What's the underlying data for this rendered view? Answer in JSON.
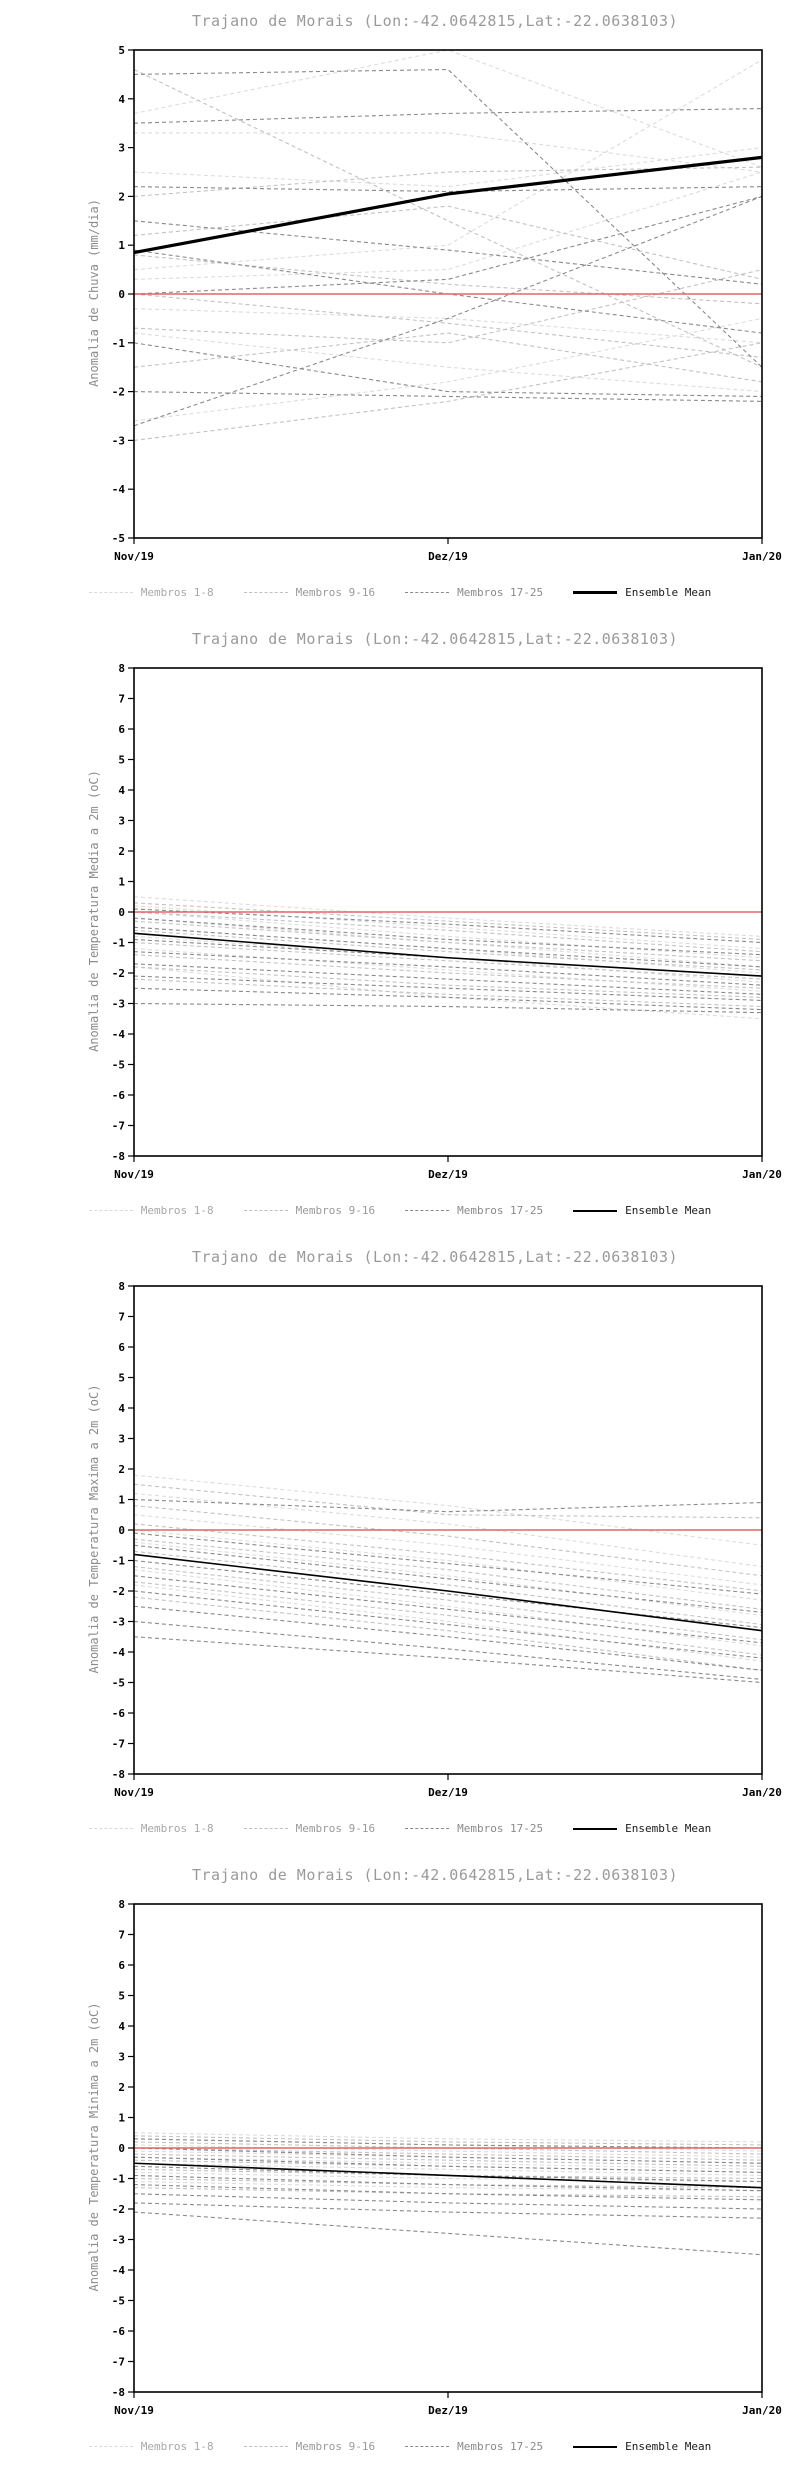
{
  "charts_meta": {
    "legend": [
      {
        "label": "Membros 1-8",
        "style": "dashed",
        "color": "#d9d9d9",
        "label_color": "#a8a8a8"
      },
      {
        "label": "Membros 9-16",
        "style": "dashed",
        "color": "#bfbfbf",
        "label_color": "#9a9a9a"
      },
      {
        "label": "Membros 17-25",
        "style": "dashed",
        "color": "#8a8a8a",
        "label_color": "#8a8a8a"
      },
      {
        "label": "Ensemble Mean",
        "style": "solid",
        "color": "#000000",
        "label_color": "#1a1a1a"
      }
    ],
    "group_colors": {
      "1": "#dcdcdc",
      "2": "#c2c2c2",
      "3": "#8a8a8a"
    },
    "colors": {
      "zero_line": "#e06666",
      "mean_line": "#000000",
      "frame": "#000000",
      "title": "#9a9a9a"
    }
  },
  "chart_data": [
    {
      "type": "line",
      "title": "Trajano de Morais (Lon:-42.0642815,Lat:-22.0638103)",
      "ylabel": "Anomalia de Chuva (mm/dia)",
      "xlabel": "",
      "x": [
        "Nov/19",
        "Dez/19",
        "Jan/20"
      ],
      "ylim": [
        -5,
        5
      ],
      "ytick_step": 1,
      "zero_line": 0,
      "mean": [
        0.85,
        2.05,
        2.8
      ],
      "mean_width": 3.2,
      "members": [
        {
          "g": 1,
          "v": [
            3.7,
            5.0,
            2.6
          ]
        },
        {
          "g": 1,
          "v": [
            3.3,
            3.3,
            2.5
          ]
        },
        {
          "g": 1,
          "v": [
            2.5,
            2.2,
            3.0
          ]
        },
        {
          "g": 1,
          "v": [
            0.5,
            1.0,
            4.8
          ]
        },
        {
          "g": 1,
          "v": [
            0.3,
            0.5,
            2.5
          ]
        },
        {
          "g": 1,
          "v": [
            -0.3,
            -0.5,
            -1.0
          ]
        },
        {
          "g": 1,
          "v": [
            -0.8,
            -1.5,
            -2.0
          ]
        },
        {
          "g": 1,
          "v": [
            -2.6,
            -1.8,
            -0.5
          ]
        },
        {
          "g": 2,
          "v": [
            4.6,
            1.5,
            -1.5
          ]
        },
        {
          "g": 2,
          "v": [
            2.0,
            2.5,
            2.6
          ]
        },
        {
          "g": 2,
          "v": [
            1.2,
            1.8,
            0.3
          ]
        },
        {
          "g": 2,
          "v": [
            0.8,
            0.2,
            -0.2
          ]
        },
        {
          "g": 2,
          "v": [
            0.0,
            -0.6,
            -1.3
          ]
        },
        {
          "g": 2,
          "v": [
            -0.7,
            -1.0,
            0.5
          ]
        },
        {
          "g": 2,
          "v": [
            -1.5,
            -0.8,
            -1.8
          ]
        },
        {
          "g": 2,
          "v": [
            -3.0,
            -2.2,
            -1.0
          ]
        },
        {
          "g": 3,
          "v": [
            4.5,
            4.6,
            -1.5
          ]
        },
        {
          "g": 3,
          "v": [
            3.5,
            3.7,
            3.8
          ]
        },
        {
          "g": 3,
          "v": [
            2.2,
            2.1,
            2.2
          ]
        },
        {
          "g": 3,
          "v": [
            1.5,
            0.9,
            0.2
          ]
        },
        {
          "g": 3,
          "v": [
            0.9,
            0.0,
            -0.8
          ]
        },
        {
          "g": 3,
          "v": [
            0.0,
            0.3,
            2.0
          ]
        },
        {
          "g": 3,
          "v": [
            -1.0,
            -2.0,
            -2.1
          ]
        },
        {
          "g": 3,
          "v": [
            -2.0,
            -2.1,
            -2.2
          ]
        },
        {
          "g": 3,
          "v": [
            -2.7,
            -0.5,
            2.0
          ]
        }
      ]
    },
    {
      "type": "line",
      "title": "Trajano de Morais (Lon:-42.0642815,Lat:-22.0638103)",
      "ylabel": "Anomalia de Temperatura Media a 2m (oC)",
      "xlabel": "",
      "x": [
        "Nov/19",
        "Dez/19",
        "Jan/20"
      ],
      "ylim": [
        -8,
        8
      ],
      "ytick_step": 1,
      "zero_line": 0,
      "mean": [
        -0.7,
        -1.5,
        -2.1
      ],
      "mean_width": 1.6,
      "members": [
        {
          "g": 1,
          "v": [
            0.5,
            -0.2,
            -0.8
          ]
        },
        {
          "g": 1,
          "v": [
            0.2,
            -0.5,
            -1.2
          ]
        },
        {
          "g": 1,
          "v": [
            0.0,
            -0.8,
            -1.5
          ]
        },
        {
          "g": 1,
          "v": [
            -0.2,
            -1.0,
            -1.8
          ]
        },
        {
          "g": 1,
          "v": [
            -0.5,
            -1.2,
            -2.0
          ]
        },
        {
          "g": 1,
          "v": [
            -0.8,
            -1.5,
            -2.3
          ]
        },
        {
          "g": 1,
          "v": [
            -1.2,
            -1.9,
            -2.6
          ]
        },
        {
          "g": 1,
          "v": [
            -1.8,
            -2.8,
            -3.5
          ]
        },
        {
          "g": 2,
          "v": [
            0.3,
            -0.3,
            -0.9
          ]
        },
        {
          "g": 2,
          "v": [
            0.0,
            -0.6,
            -1.3
          ]
        },
        {
          "g": 2,
          "v": [
            -0.3,
            -1.0,
            -1.6
          ]
        },
        {
          "g": 2,
          "v": [
            -0.6,
            -1.3,
            -1.9
          ]
        },
        {
          "g": 2,
          "v": [
            -1.0,
            -1.6,
            -2.2
          ]
        },
        {
          "g": 2,
          "v": [
            -1.4,
            -2.0,
            -2.5
          ]
        },
        {
          "g": 2,
          "v": [
            -1.8,
            -2.4,
            -2.8
          ]
        },
        {
          "g": 2,
          "v": [
            -2.2,
            -2.7,
            -3.1
          ]
        },
        {
          "g": 3,
          "v": [
            0.1,
            -0.4,
            -1.0
          ]
        },
        {
          "g": 3,
          "v": [
            -0.2,
            -0.9,
            -1.4
          ]
        },
        {
          "g": 3,
          "v": [
            -0.5,
            -1.2,
            -1.8
          ]
        },
        {
          "g": 3,
          "v": [
            -0.9,
            -1.5,
            -2.1
          ]
        },
        {
          "g": 3,
          "v": [
            -1.3,
            -1.8,
            -2.4
          ]
        },
        {
          "g": 3,
          "v": [
            -1.7,
            -2.2,
            -2.7
          ]
        },
        {
          "g": 3,
          "v": [
            -2.1,
            -2.5,
            -2.9
          ]
        },
        {
          "g": 3,
          "v": [
            -2.5,
            -2.8,
            -3.2
          ]
        },
        {
          "g": 3,
          "v": [
            -3.0,
            -3.1,
            -3.3
          ]
        }
      ]
    },
    {
      "type": "line",
      "title": "Trajano de Morais (Lon:-42.0642815,Lat:-22.0638103)",
      "ylabel": "Anomalia de Temperatura Maxima a 2m (oC)",
      "xlabel": "",
      "x": [
        "Nov/19",
        "Dez/19",
        "Jan/20"
      ],
      "ylim": [
        -8,
        8
      ],
      "ytick_step": 1,
      "zero_line": 0,
      "mean": [
        -0.8,
        -2.0,
        -3.3
      ],
      "mean_width": 1.6,
      "members": [
        {
          "g": 1,
          "v": [
            1.8,
            0.8,
            -0.5
          ]
        },
        {
          "g": 1,
          "v": [
            1.2,
            0.2,
            -1.2
          ]
        },
        {
          "g": 1,
          "v": [
            0.5,
            -0.5,
            -1.8
          ]
        },
        {
          "g": 1,
          "v": [
            0.0,
            -1.0,
            -2.3
          ]
        },
        {
          "g": 1,
          "v": [
            -0.4,
            -1.5,
            -2.8
          ]
        },
        {
          "g": 1,
          "v": [
            -0.8,
            -2.0,
            -3.3
          ]
        },
        {
          "g": 1,
          "v": [
            -1.3,
            -2.5,
            -3.8
          ]
        },
        {
          "g": 1,
          "v": [
            -1.8,
            -3.0,
            -4.3
          ]
        },
        {
          "g": 2,
          "v": [
            1.5,
            0.5,
            0.4
          ]
        },
        {
          "g": 2,
          "v": [
            0.8,
            -0.2,
            -1.5
          ]
        },
        {
          "g": 2,
          "v": [
            0.2,
            -0.8,
            -2.0
          ]
        },
        {
          "g": 2,
          "v": [
            -0.3,
            -1.3,
            -2.6
          ]
        },
        {
          "g": 2,
          "v": [
            -0.7,
            -1.8,
            -3.1
          ]
        },
        {
          "g": 2,
          "v": [
            -1.2,
            -2.3,
            -3.6
          ]
        },
        {
          "g": 2,
          "v": [
            -1.7,
            -2.8,
            -4.1
          ]
        },
        {
          "g": 2,
          "v": [
            -2.2,
            -3.3,
            -4.6
          ]
        },
        {
          "g": 3,
          "v": [
            1.0,
            0.6,
            0.9
          ]
        },
        {
          "g": 3,
          "v": [
            -0.1,
            -1.1,
            -2.1
          ]
        },
        {
          "g": 3,
          "v": [
            -0.5,
            -1.6,
            -2.7
          ]
        },
        {
          "g": 3,
          "v": [
            -1.0,
            -2.1,
            -3.2
          ]
        },
        {
          "g": 3,
          "v": [
            -1.5,
            -2.6,
            -3.7
          ]
        },
        {
          "g": 3,
          "v": [
            -2.0,
            -3.1,
            -4.2
          ]
        },
        {
          "g": 3,
          "v": [
            -2.5,
            -3.5,
            -4.6
          ]
        },
        {
          "g": 3,
          "v": [
            -3.0,
            -3.9,
            -4.9
          ]
        },
        {
          "g": 3,
          "v": [
            -3.5,
            -4.2,
            -5.0
          ]
        }
      ]
    },
    {
      "type": "line",
      "title": "Trajano de Morais (Lon:-42.0642815,Lat:-22.0638103)",
      "ylabel": "Anomalia de Temperatura Minima a 2m (oC)",
      "xlabel": "",
      "x": [
        "Nov/19",
        "Dez/19",
        "Jan/20"
      ],
      "ylim": [
        -8,
        8
      ],
      "ytick_step": 1,
      "zero_line": 0,
      "mean": [
        -0.5,
        -0.9,
        -1.3
      ],
      "mean_width": 1.6,
      "members": [
        {
          "g": 1,
          "v": [
            0.5,
            0.3,
            0.2
          ]
        },
        {
          "g": 1,
          "v": [
            0.3,
            0.1,
            -0.1
          ]
        },
        {
          "g": 1,
          "v": [
            0.1,
            -0.1,
            -0.3
          ]
        },
        {
          "g": 1,
          "v": [
            -0.1,
            -0.3,
            -0.5
          ]
        },
        {
          "g": 1,
          "v": [
            -0.3,
            -0.5,
            -0.7
          ]
        },
        {
          "g": 1,
          "v": [
            -0.5,
            -0.7,
            -0.9
          ]
        },
        {
          "g": 1,
          "v": [
            -0.8,
            -1.0,
            -1.1
          ]
        },
        {
          "g": 1,
          "v": [
            -1.1,
            -1.3,
            -1.4
          ]
        },
        {
          "g": 2,
          "v": [
            0.4,
            0.2,
            0.1
          ]
        },
        {
          "g": 2,
          "v": [
            0.2,
            0.0,
            -0.2
          ]
        },
        {
          "g": 2,
          "v": [
            0.0,
            -0.2,
            -0.4
          ]
        },
        {
          "g": 2,
          "v": [
            -0.2,
            -0.4,
            -0.6
          ]
        },
        {
          "g": 2,
          "v": [
            -0.4,
            -0.6,
            -0.8
          ]
        },
        {
          "g": 2,
          "v": [
            -0.7,
            -0.9,
            -1.0
          ]
        },
        {
          "g": 2,
          "v": [
            -1.0,
            -1.2,
            -1.3
          ]
        },
        {
          "g": 2,
          "v": [
            -1.3,
            -1.5,
            -1.6
          ]
        },
        {
          "g": 3,
          "v": [
            0.3,
            0.1,
            0.0
          ]
        },
        {
          "g": 3,
          "v": [
            0.0,
            -0.3,
            -0.5
          ]
        },
        {
          "g": 3,
          "v": [
            -0.3,
            -0.6,
            -0.8
          ]
        },
        {
          "g": 3,
          "v": [
            -0.6,
            -0.9,
            -1.1
          ]
        },
        {
          "g": 3,
          "v": [
            -0.9,
            -1.2,
            -1.4
          ]
        },
        {
          "g": 3,
          "v": [
            -1.2,
            -1.5,
            -1.7
          ]
        },
        {
          "g": 3,
          "v": [
            -1.5,
            -1.8,
            -2.0
          ]
        },
        {
          "g": 3,
          "v": [
            -1.8,
            -2.1,
            -2.3
          ]
        },
        {
          "g": 3,
          "v": [
            -2.1,
            -2.8,
            -3.5
          ]
        }
      ]
    }
  ]
}
